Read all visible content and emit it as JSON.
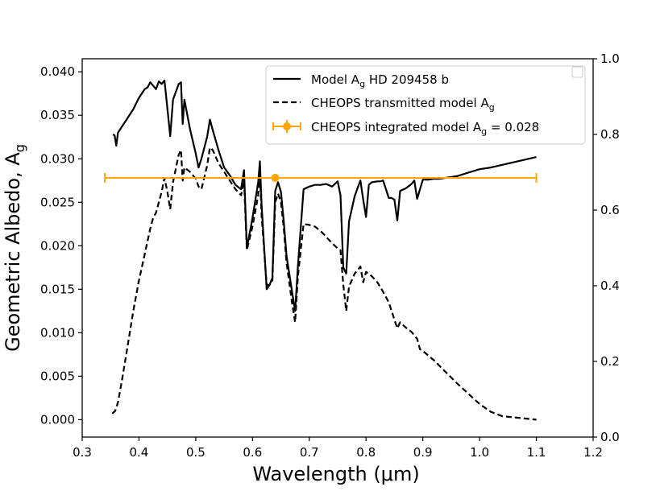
{
  "chart_data": {
    "type": "line",
    "xlabel_text": "Wavelength (μm)",
    "ylabel_text": "Geometric Albedo, A",
    "ylabel_sub": "g",
    "xlim": [
      0.3,
      1.2
    ],
    "ylim": [
      -0.002,
      0.0415
    ],
    "y2lim": [
      0.0,
      1.0
    ],
    "xticks": [
      0.3,
      0.4,
      0.5,
      0.6,
      0.7,
      0.8,
      0.9,
      1.0,
      1.1,
      1.2
    ],
    "xtick_labels": [
      "0.3",
      "0.4",
      "0.5",
      "0.6",
      "0.7",
      "0.8",
      "0.9",
      "1.0",
      "1.1",
      "1.2"
    ],
    "yticks": [
      0.0,
      0.005,
      0.01,
      0.015,
      0.02,
      0.025,
      0.03,
      0.035,
      0.04
    ],
    "ytick_labels": [
      "0.000",
      "0.005",
      "0.010",
      "0.015",
      "0.020",
      "0.025",
      "0.030",
      "0.035",
      "0.040"
    ],
    "y2ticks": [
      0.0,
      0.2,
      0.4,
      0.6,
      0.8,
      1.0
    ],
    "y2tick_labels": [
      "0.0",
      "0.2",
      "0.4",
      "0.6",
      "0.8",
      "1.0"
    ],
    "legend": {
      "location": "top-right",
      "entries": [
        {
          "pre": "Model A",
          "sub": "g",
          "post": " HD 209458 b",
          "style": "solid"
        },
        {
          "pre": "CHEOPS transmitted model A",
          "sub": "g",
          "post": "",
          "style": "dashed"
        },
        {
          "pre": "CHEOPS integrated model A",
          "sub": "g",
          "post": " = 0.028",
          "style": "errorbar"
        }
      ]
    },
    "series": [
      {
        "name": "Model Ag HD 209458 b",
        "style": "solid",
        "color": "#000000",
        "x": [
          0.354,
          0.357,
          0.36,
          0.363,
          0.37,
          0.38,
          0.39,
          0.4,
          0.41,
          0.415,
          0.42,
          0.43,
          0.435,
          0.44,
          0.445,
          0.45,
          0.455,
          0.46,
          0.47,
          0.474,
          0.477,
          0.48,
          0.49,
          0.5,
          0.505,
          0.51,
          0.52,
          0.525,
          0.53,
          0.54,
          0.55,
          0.56,
          0.57,
          0.58,
          0.585,
          0.59,
          0.6,
          0.61,
          0.613,
          0.616,
          0.625,
          0.63,
          0.635,
          0.64,
          0.645,
          0.65,
          0.655,
          0.66,
          0.67,
          0.675,
          0.68,
          0.69,
          0.7,
          0.71,
          0.72,
          0.73,
          0.74,
          0.75,
          0.755,
          0.76,
          0.765,
          0.77,
          0.78,
          0.79,
          0.795,
          0.8,
          0.805,
          0.81,
          0.82,
          0.825,
          0.83,
          0.84,
          0.845,
          0.85,
          0.855,
          0.86,
          0.87,
          0.88,
          0.885,
          0.89,
          0.9,
          0.91,
          0.92,
          0.93,
          0.94,
          0.95,
          0.96,
          0.98,
          1.0,
          1.02,
          1.04,
          1.06,
          1.08,
          1.1
        ],
        "y": [
          0.0328,
          0.0327,
          0.0315,
          0.033,
          0.0337,
          0.0347,
          0.0357,
          0.037,
          0.038,
          0.0382,
          0.0388,
          0.038,
          0.0389,
          0.0386,
          0.039,
          0.0358,
          0.0326,
          0.0368,
          0.0386,
          0.0388,
          0.034,
          0.0368,
          0.0334,
          0.0306,
          0.029,
          0.03,
          0.0325,
          0.0345,
          0.0333,
          0.031,
          0.029,
          0.0281,
          0.027,
          0.0265,
          0.0287,
          0.0197,
          0.0232,
          0.0273,
          0.0297,
          0.0247,
          0.015,
          0.0155,
          0.0163,
          0.0263,
          0.0273,
          0.0262,
          0.0228,
          0.0188,
          0.0146,
          0.0125,
          0.0177,
          0.0265,
          0.0268,
          0.027,
          0.027,
          0.0271,
          0.0268,
          0.0274,
          0.0258,
          0.0175,
          0.0168,
          0.0228,
          0.0257,
          0.0275,
          0.0253,
          0.0233,
          0.027,
          0.0273,
          0.0274,
          0.0274,
          0.0275,
          0.0255,
          0.0255,
          0.0253,
          0.0229,
          0.0263,
          0.0266,
          0.0271,
          0.0275,
          0.0254,
          0.0276,
          0.0276,
          0.0277,
          0.0277,
          0.0278,
          0.0279,
          0.028,
          0.0284,
          0.0288,
          0.029,
          0.0293,
          0.0296,
          0.0299,
          0.0302
        ]
      },
      {
        "name": "CHEOPS transmitted model Ag",
        "style": "dashed",
        "color": "#000000",
        "x": [
          0.353,
          0.358,
          0.363,
          0.37,
          0.38,
          0.39,
          0.4,
          0.41,
          0.42,
          0.425,
          0.43,
          0.44,
          0.445,
          0.45,
          0.455,
          0.46,
          0.47,
          0.474,
          0.477,
          0.48,
          0.49,
          0.5,
          0.505,
          0.51,
          0.52,
          0.525,
          0.53,
          0.54,
          0.55,
          0.56,
          0.57,
          0.58,
          0.585,
          0.59,
          0.6,
          0.61,
          0.613,
          0.616,
          0.625,
          0.63,
          0.635,
          0.64,
          0.645,
          0.65,
          0.655,
          0.66,
          0.67,
          0.675,
          0.68,
          0.69,
          0.7,
          0.71,
          0.72,
          0.73,
          0.74,
          0.75,
          0.755,
          0.76,
          0.765,
          0.77,
          0.78,
          0.79,
          0.795,
          0.8,
          0.81,
          0.82,
          0.83,
          0.84,
          0.85,
          0.855,
          0.86,
          0.87,
          0.88,
          0.89,
          0.895,
          0.9,
          0.92,
          0.94,
          0.96,
          0.98,
          1.0,
          1.02,
          1.04,
          1.07,
          1.1
        ],
        "y": [
          0.0007,
          0.001,
          0.002,
          0.0045,
          0.0085,
          0.0125,
          0.016,
          0.019,
          0.022,
          0.0232,
          0.0238,
          0.0262,
          0.0278,
          0.0262,
          0.0242,
          0.0273,
          0.0305,
          0.031,
          0.0275,
          0.029,
          0.0285,
          0.0277,
          0.0268,
          0.0265,
          0.0292,
          0.0313,
          0.031,
          0.0295,
          0.0285,
          0.0275,
          0.0265,
          0.0258,
          0.0275,
          0.0195,
          0.0222,
          0.0258,
          0.0283,
          0.0235,
          0.0155,
          0.0155,
          0.016,
          0.025,
          0.026,
          0.025,
          0.022,
          0.018,
          0.0133,
          0.0112,
          0.0165,
          0.0225,
          0.0224,
          0.0222,
          0.0217,
          0.021,
          0.0203,
          0.0197,
          0.0195,
          0.0155,
          0.0125,
          0.0153,
          0.0168,
          0.0176,
          0.0158,
          0.017,
          0.0165,
          0.0158,
          0.0147,
          0.0135,
          0.0115,
          0.0105,
          0.0112,
          0.0106,
          0.0101,
          0.0093,
          0.0081,
          0.0079,
          0.0068,
          0.0055,
          0.0042,
          0.003,
          0.0018,
          0.0009,
          0.0004,
          0.0002,
          0.0
        ]
      }
    ],
    "errorbar": {
      "name": "CHEOPS integrated model Ag = 0.028",
      "color": "#ffa500",
      "x": 0.64,
      "y": 0.0278,
      "xerr_low": 0.34,
      "xerr_high": 1.1
    }
  }
}
